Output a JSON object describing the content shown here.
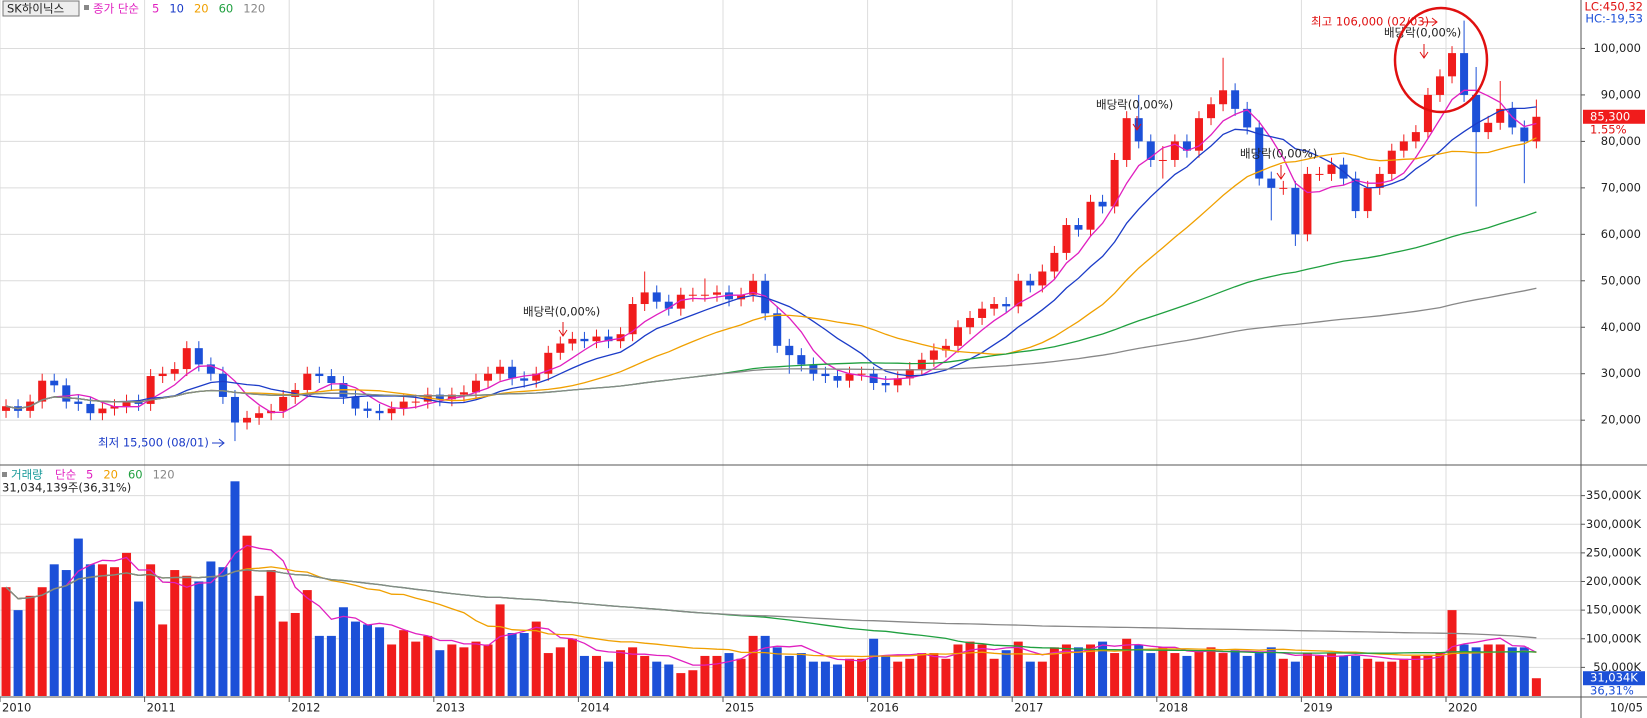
{
  "header": {
    "stock": "SK하이닉스"
  },
  "chart_data": [
    {
      "type": "candlestick",
      "ma_label": "종가 단순",
      "moving_averages": {
        "periods": [
          5,
          10,
          20,
          60,
          120
        ],
        "colors": [
          "#e020c0",
          "#1c3cc8",
          "#f0a000",
          "#20a040",
          "#888888"
        ]
      },
      "indicators": [
        "LC:450,32",
        "HC:-19,53"
      ],
      "up_color": "#f01c1c",
      "down_color": "#1c50d8",
      "grid": true,
      "categories": [
        "2010",
        null,
        null,
        null,
        null,
        null,
        null,
        null,
        null,
        null,
        null,
        null,
        "2011",
        null,
        null,
        null,
        null,
        null,
        null,
        null,
        null,
        null,
        null,
        null,
        "2012",
        null,
        null,
        null,
        null,
        null,
        null,
        null,
        null,
        null,
        null,
        null,
        "2013",
        null,
        null,
        null,
        null,
        null,
        null,
        null,
        null,
        null,
        null,
        null,
        "2014",
        null,
        null,
        null,
        null,
        null,
        null,
        null,
        null,
        null,
        null,
        null,
        "2015",
        null,
        null,
        null,
        null,
        null,
        null,
        null,
        null,
        null,
        null,
        null,
        "2016",
        null,
        null,
        null,
        null,
        null,
        null,
        null,
        null,
        null,
        null,
        null,
        "2017",
        null,
        null,
        null,
        null,
        null,
        null,
        null,
        null,
        null,
        null,
        null,
        "2018",
        null,
        null,
        null,
        null,
        null,
        null,
        null,
        null,
        null,
        null,
        null,
        "2019",
        null,
        null,
        null,
        null,
        null,
        null,
        null,
        null,
        null,
        null,
        null,
        "2020",
        null,
        null,
        null,
        null,
        null,
        null,
        null
      ],
      "x_end_label": "10/05",
      "open": [
        22000,
        23000,
        22000,
        24000,
        28500,
        27500,
        24000,
        23500,
        21500,
        22500,
        23000,
        24000,
        23500,
        29500,
        30000,
        31000,
        35500,
        32000,
        30000,
        25000,
        19500,
        20500,
        21500,
        22000,
        25000,
        26500,
        30000,
        29500,
        28000,
        25000,
        22500,
        22000,
        21500,
        22500,
        24000,
        24000,
        25500,
        24500,
        25500,
        26000,
        28500,
        30000,
        31500,
        29000,
        28500,
        30000,
        34500,
        36500,
        37500,
        37000,
        38000,
        37000,
        38500,
        45000,
        47500,
        45500,
        44000,
        47000,
        47000,
        47000,
        47500,
        46000,
        47000,
        50000,
        43000,
        36000,
        34000,
        32000,
        30000,
        29500,
        28500,
        30000,
        30000,
        28000,
        27500,
        29000,
        31000,
        33000,
        35000,
        36000,
        40000,
        42000,
        44000,
        45000,
        44500,
        50000,
        49000,
        52000,
        56000,
        62000,
        61000,
        67000,
        66000,
        76000,
        85000,
        80000,
        76000,
        76000,
        80000,
        78000,
        85000,
        88000,
        91000,
        87000,
        83000,
        72000,
        70000,
        70000,
        60000,
        73000,
        73000,
        75000,
        72000,
        65000,
        70000,
        73000,
        78000,
        80000,
        82000,
        90000,
        94000,
        99000,
        90000,
        82000,
        84000,
        87000,
        83000,
        80000
      ],
      "high": [
        24500,
        24500,
        25500,
        30000,
        30000,
        29000,
        25500,
        25000,
        24000,
        24500,
        25500,
        25500,
        31000,
        31500,
        32500,
        37000,
        37000,
        33500,
        31500,
        26500,
        22000,
        23000,
        23500,
        26500,
        28000,
        31500,
        31500,
        31000,
        29500,
        26500,
        24000,
        23500,
        24000,
        25500,
        25500,
        27000,
        27000,
        27000,
        27500,
        30000,
        31500,
        33000,
        33000,
        30500,
        31500,
        36000,
        38000,
        39000,
        39000,
        39500,
        39500,
        40000,
        46500,
        52000,
        49000,
        47000,
        48500,
        48500,
        50500,
        49000,
        49000,
        48500,
        51500,
        51500,
        44500,
        37500,
        35500,
        33500,
        31500,
        31000,
        31500,
        31500,
        31500,
        29500,
        30500,
        32500,
        34500,
        36500,
        37500,
        41500,
        43500,
        45500,
        46500,
        46500,
        51500,
        51500,
        53500,
        57500,
        63500,
        63500,
        68500,
        68500,
        77500,
        86500,
        90000,
        81500,
        79000,
        81500,
        81500,
        86500,
        89500,
        98000,
        92500,
        88500,
        84500,
        73500,
        71500,
        71500,
        74500,
        74500,
        76500,
        76500,
        73500,
        71500,
        74500,
        79500,
        81500,
        83500,
        91500,
        95500,
        100500,
        106000,
        96000,
        85500,
        93000,
        88500,
        84500,
        89000
      ],
      "low": [
        20500,
        20500,
        20500,
        22500,
        26000,
        22500,
        22000,
        20000,
        20000,
        21000,
        21500,
        22000,
        22000,
        28000,
        28500,
        29500,
        30500,
        28500,
        23500,
        15500,
        18000,
        19000,
        20000,
        20500,
        23500,
        25000,
        28000,
        26500,
        23500,
        21000,
        20500,
        20000,
        20000,
        21000,
        22500,
        22500,
        23000,
        23000,
        24000,
        24500,
        27000,
        28500,
        27500,
        27000,
        27000,
        28500,
        33000,
        35000,
        35500,
        35500,
        35500,
        35500,
        37000,
        43500,
        44000,
        42500,
        42500,
        45500,
        45500,
        45500,
        44500,
        44500,
        45500,
        41500,
        34500,
        30000,
        30500,
        28500,
        28000,
        27000,
        27000,
        28500,
        26500,
        26000,
        26000,
        27500,
        29500,
        31500,
        33500,
        34500,
        38500,
        40500,
        42500,
        43000,
        43000,
        47500,
        47500,
        50500,
        54500,
        59500,
        59500,
        64500,
        64500,
        74500,
        78500,
        74500,
        72000,
        74500,
        76500,
        76500,
        83500,
        86500,
        85500,
        81500,
        70500,
        63000,
        68500,
        57500,
        58500,
        71500,
        71500,
        70500,
        63500,
        63500,
        68500,
        71500,
        76500,
        78500,
        80500,
        88500,
        92500,
        88500,
        66000,
        80500,
        82500,
        81500,
        71000,
        78500
      ],
      "close": [
        23000,
        22000,
        24000,
        28500,
        27500,
        24000,
        23500,
        21500,
        22500,
        23000,
        24000,
        23500,
        29500,
        30000,
        31000,
        35500,
        32000,
        30000,
        25000,
        19500,
        20500,
        21500,
        22000,
        25000,
        26500,
        30000,
        29500,
        28000,
        25000,
        22500,
        22000,
        21500,
        22500,
        24000,
        24000,
        25500,
        24500,
        25500,
        26000,
        28500,
        30000,
        31500,
        29000,
        28500,
        30000,
        34500,
        36500,
        37500,
        37000,
        38000,
        37000,
        38500,
        45000,
        47500,
        45500,
        44000,
        47000,
        47000,
        47000,
        47500,
        46000,
        47000,
        50000,
        43000,
        36000,
        34000,
        32000,
        30000,
        29500,
        28500,
        30000,
        30000,
        28000,
        27500,
        29000,
        31000,
        33000,
        35000,
        36000,
        40000,
        42000,
        44000,
        45000,
        44500,
        50000,
        49000,
        52000,
        56000,
        62000,
        61000,
        67000,
        66000,
        76000,
        85000,
        80000,
        76000,
        76000,
        80000,
        78000,
        85000,
        88000,
        91000,
        87000,
        83000,
        72000,
        70000,
        70000,
        60000,
        73000,
        73000,
        75000,
        72000,
        65000,
        70000,
        73000,
        78000,
        80000,
        82000,
        90000,
        94000,
        99000,
        90000,
        82000,
        84000,
        87000,
        83000,
        80000,
        85300
      ],
      "ylim": [
        11000,
        110000
      ],
      "yticks": [
        {
          "value": 20000,
          "label": "20,000"
        },
        {
          "value": 30000,
          "label": "30,000"
        },
        {
          "value": 40000,
          "label": "40,000"
        },
        {
          "value": 50000,
          "label": "50,000"
        },
        {
          "value": 60000,
          "label": "60,000"
        },
        {
          "value": 70000,
          "label": "70,000"
        },
        {
          "value": 80000,
          "label": "80,000"
        },
        {
          "value": 90000,
          "label": "90,000"
        },
        {
          "value": 100000,
          "label": "100,000"
        }
      ],
      "last_label": "85,300",
      "change_label": "1.55%",
      "high_note": "최고 106,000 (02/03)",
      "low_note": "최저 15,500 (08/01)",
      "dividend_notes": [
        "배당락(0,00%)",
        "배당락(0,00%)",
        "배당락(0,00%)",
        "배당락(0,00%)"
      ]
    },
    {
      "type": "bar",
      "label": "거래량",
      "ma_label": "단순",
      "moving_averages": {
        "periods": [
          5,
          20,
          60,
          120
        ],
        "colors": [
          "#e020c0",
          "#f0a000",
          "#20a040",
          "#888888"
        ]
      },
      "summary": "31,034,139주(36,31%)",
      "values": [
        190000,
        150000,
        175000,
        190000,
        230000,
        220000,
        275000,
        230000,
        230000,
        225000,
        250000,
        165000,
        230000,
        125000,
        220000,
        210000,
        200000,
        235000,
        225000,
        375000,
        280000,
        175000,
        220000,
        130000,
        145000,
        185000,
        105000,
        105000,
        155000,
        130000,
        125000,
        120000,
        90000,
        115000,
        95000,
        105000,
        80000,
        90000,
        85000,
        95000,
        90000,
        160000,
        110000,
        110000,
        130000,
        75000,
        85000,
        100000,
        70000,
        70000,
        60000,
        80000,
        85000,
        70000,
        60000,
        55000,
        40000,
        45000,
        70000,
        70000,
        75000,
        65000,
        105000,
        105000,
        85000,
        70000,
        75000,
        60000,
        60000,
        55000,
        65000,
        65000,
        100000,
        70000,
        60000,
        65000,
        75000,
        75000,
        65000,
        90000,
        95000,
        90000,
        65000,
        80000,
        95000,
        60000,
        60000,
        85000,
        90000,
        85000,
        90000,
        95000,
        75000,
        100000,
        90000,
        75000,
        85000,
        75000,
        70000,
        80000,
        85000,
        75000,
        80000,
        70000,
        75000,
        85000,
        65000,
        60000,
        75000,
        70000,
        75000,
        70000,
        70000,
        65000,
        60000,
        60000,
        65000,
        70000,
        70000,
        75000,
        150000,
        90000,
        85000,
        90000,
        90000,
        85000,
        85000,
        31034
      ],
      "ylim": [
        0,
        400000
      ],
      "yticks": [
        {
          "value": 50000,
          "label": "50,000K"
        },
        {
          "value": 100000,
          "label": "100,000K"
        },
        {
          "value": 150000,
          "label": "150,000K"
        },
        {
          "value": 200000,
          "label": "200,000K"
        },
        {
          "value": 250000,
          "label": "250,000K"
        },
        {
          "value": 300000,
          "label": "300,000K"
        },
        {
          "value": 350000,
          "label": "350,000K"
        }
      ],
      "last_label": "31,034K",
      "ratio_label": "36,31%"
    }
  ]
}
